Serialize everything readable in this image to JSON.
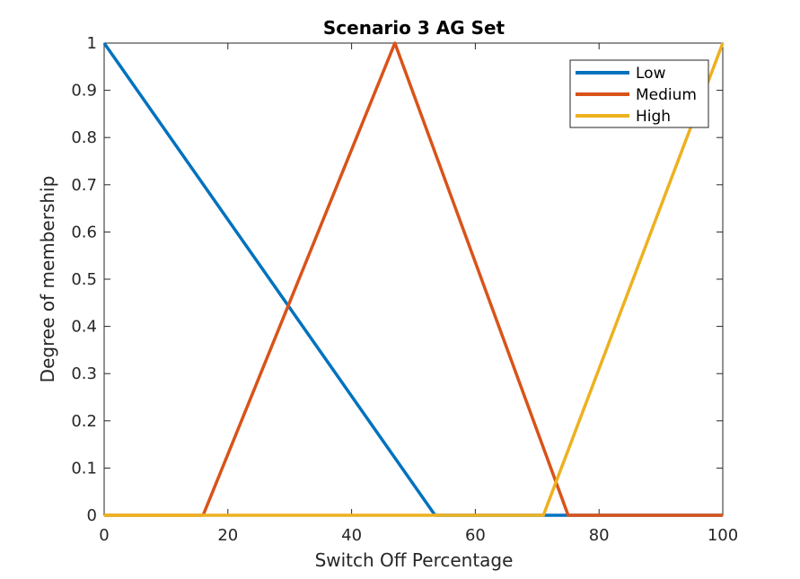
{
  "chart_data": {
    "type": "line",
    "title": "Scenario 3 AG Set",
    "xlabel": "Switch Off Percentage",
    "ylabel": "Degree of membership",
    "xlim": [
      0,
      100
    ],
    "ylim": [
      0,
      1
    ],
    "xticks": [
      0,
      20,
      40,
      60,
      80,
      100
    ],
    "xtick_labels": [
      "0",
      "20",
      "40",
      "60",
      "80",
      "100"
    ],
    "yticks": [
      0,
      0.1,
      0.2,
      0.3,
      0.4,
      0.5,
      0.6,
      0.7,
      0.8,
      0.9,
      1
    ],
    "ytick_labels": [
      "0",
      "0.1",
      "0.2",
      "0.3",
      "0.4",
      "0.5",
      "0.6",
      "0.7",
      "0.8",
      "0.9",
      "1"
    ],
    "grid": false,
    "legend_position": "top-right",
    "series": [
      {
        "name": "Low",
        "color": "#0072bd",
        "x": [
          0,
          53.5,
          100
        ],
        "y": [
          1,
          0,
          0
        ]
      },
      {
        "name": "Medium",
        "color": "#d95319",
        "x": [
          0,
          16,
          47,
          75,
          100
        ],
        "y": [
          0,
          0,
          1,
          0,
          0
        ]
      },
      {
        "name": "High",
        "color": "#edb120",
        "x": [
          0,
          71,
          100
        ],
        "y": [
          0,
          0,
          1
        ]
      }
    ]
  }
}
